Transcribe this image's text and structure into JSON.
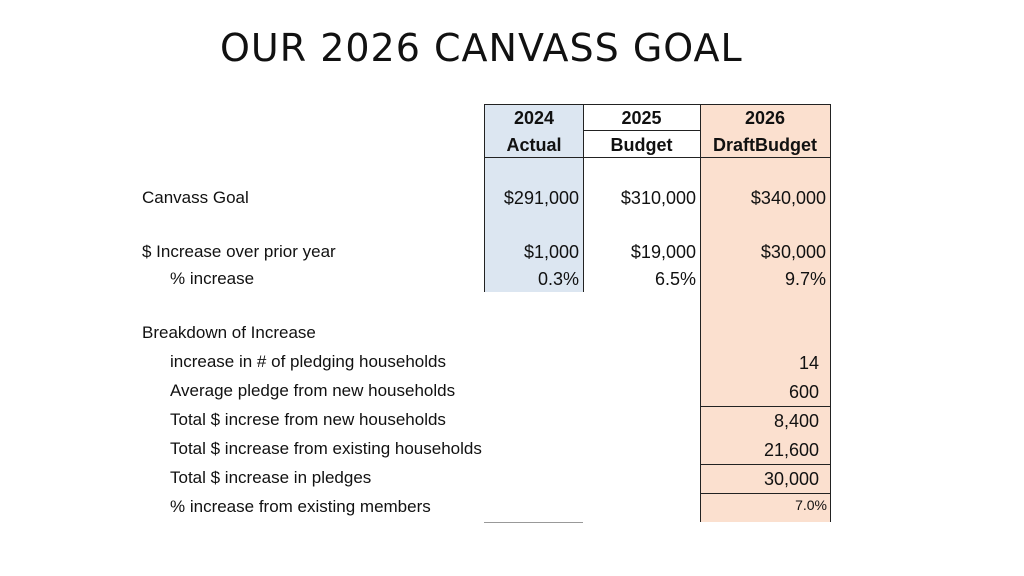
{
  "title": "OUR 2026 CANVASS GOAL",
  "columns": [
    {
      "line1": "2024",
      "line2": "Actual"
    },
    {
      "line1": "2025",
      "line2": "Budget"
    },
    {
      "line1": "2026",
      "line2": "DraftBudget"
    }
  ],
  "rows": {
    "canvass_goal": {
      "label": "Canvass Goal",
      "v2024": "$291,000",
      "v2025": "$310,000",
      "v2026": "$340,000"
    },
    "increase": {
      "label": "$ Increase over prior year",
      "v2024": "$1,000",
      "v2025": "$19,000",
      "v2026": "$30,000"
    },
    "pct_increase": {
      "label": "% increase",
      "v2024": "0.3%",
      "v2025": "6.5%",
      "v2026": "9.7%"
    },
    "breakdown_heading": "Breakdown of Increase",
    "breakdown": [
      {
        "label": "increase in # of pledging households",
        "value": "14"
      },
      {
        "label": "Average pledge from new households",
        "value": "600"
      },
      {
        "label": "Total $ increse from new households",
        "value": "8,400"
      },
      {
        "label": "Total $ increase from existing households",
        "value": "21,600"
      },
      {
        "label": "Total $ increase in pledges",
        "value": "30,000"
      },
      {
        "label": "% increase from existing members",
        "value": "7.0%"
      }
    ]
  },
  "colors": {
    "col_2024": "#dce6f1",
    "col_2026": "#fbe0cf"
  }
}
